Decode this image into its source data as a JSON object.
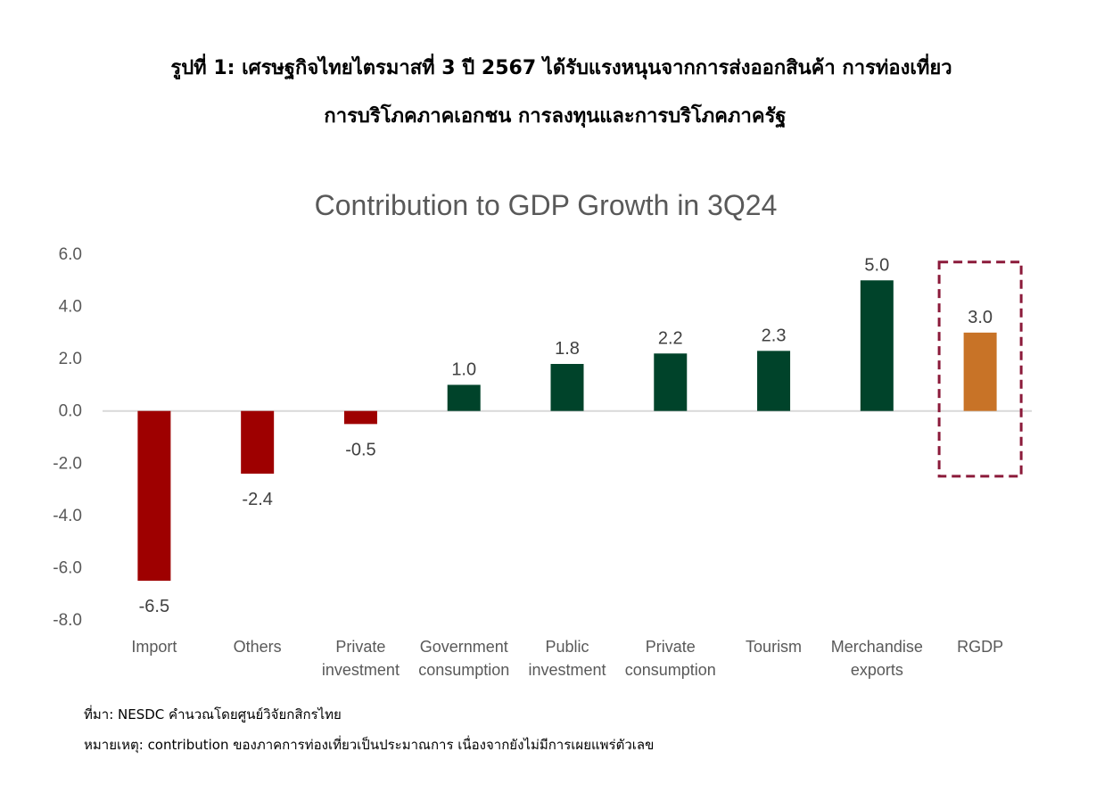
{
  "heading": {
    "line1": "รูปที่ 1: เศรษฐกิจไทยไตรมาสที่ 3 ปี 2567 ได้รับแรงหนุนจากการส่งออกสินค้า การท่องเที่ยว",
    "line2": "การบริโภคภาคเอกชน การลงทุนและการบริโภคภาครัฐ"
  },
  "notes": {
    "source": "ที่มา: NESDC คำนวณโดยศูนย์วิจัยกสิกรไทย",
    "remark": "หมายเหตุ: contribution ของภาคการท่องเที่ยวเป็นประมาณการ เนื่องจากยังไม่มีการเผยแพร่ตัวเลข"
  },
  "colors": {
    "negative": "#9E0000",
    "positive": "#00432A",
    "total": "#C87327",
    "highlight_box": "#8B1A3A",
    "axis_text": "#595959",
    "title_text": "#595959",
    "zero_line": "#D9D9D9"
  },
  "chart_data": {
    "type": "bar",
    "title": "Contribution to GDP Growth in 3Q24",
    "xlabel": "",
    "ylabel": "",
    "ylim": [
      -8.0,
      6.0
    ],
    "yticks": [
      "6.0",
      "4.0",
      "2.0",
      "0.0",
      "-2.0",
      "-4.0",
      "-6.0",
      "-8.0"
    ],
    "categories": [
      [
        "Import"
      ],
      [
        "Others"
      ],
      [
        "Private",
        "investment"
      ],
      [
        "Government",
        "consumption"
      ],
      [
        "Public",
        "investment"
      ],
      [
        "Private",
        "consumption"
      ],
      [
        "Tourism"
      ],
      [
        "Merchandise",
        "exports"
      ],
      [
        "RGDP"
      ]
    ],
    "values": [
      -6.5,
      -2.4,
      -0.5,
      1.0,
      1.8,
      2.2,
      2.3,
      5.0,
      3.0
    ],
    "data_labels": [
      "-6.5",
      "-2.4",
      "-0.5",
      "1.0",
      "1.8",
      "2.2",
      "2.3",
      "5.0",
      "3.0"
    ],
    "highlighted_category": "RGDP",
    "grid": false,
    "legend": "none"
  }
}
